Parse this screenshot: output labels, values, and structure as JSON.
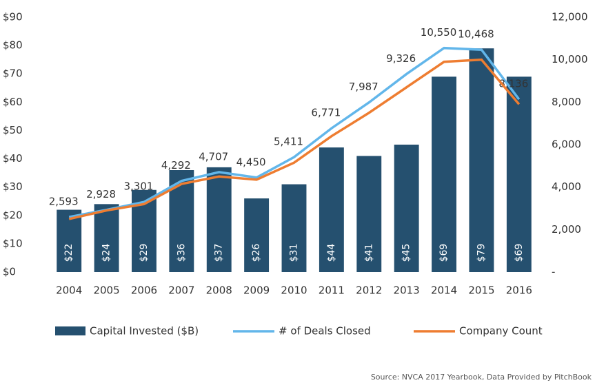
{
  "chart_data": {
    "type": "bar",
    "categories": [
      "2004",
      "2005",
      "2006",
      "2007",
      "2008",
      "2009",
      "2010",
      "2011",
      "2012",
      "2013",
      "2014",
      "2015",
      "2016"
    ],
    "series": [
      {
        "name": "Capital Invested ($B)",
        "type": "bar",
        "color": "#25506f",
        "values": [
          22,
          24,
          29,
          36,
          37,
          26,
          31,
          44,
          41,
          45,
          69,
          79,
          69
        ],
        "value_labels": [
          "$22",
          "$24",
          "$29",
          "$36",
          "$37",
          "$26",
          "$31",
          "$44",
          "$41",
          "$45",
          "$69",
          "$79",
          "$69"
        ]
      },
      {
        "name": "# of Deals Closed",
        "type": "line",
        "axis": "y2",
        "color": "#62b6ea",
        "values": [
          2593,
          2928,
          3301,
          4292,
          4707,
          4450,
          5411,
          6771,
          7987,
          9326,
          10550,
          10468,
          8136
        ],
        "value_labels": [
          "2,593",
          "2,928",
          "3,301",
          "4,292",
          "4,707",
          "4,450",
          "5,411",
          "6,771",
          "7,987",
          "9,326",
          "10,550",
          "10,468",
          "8,136"
        ]
      },
      {
        "name": "Company Count",
        "type": "line",
        "axis": "y2",
        "color": "#ee7d31",
        "values": [
          2500,
          2900,
          3200,
          4150,
          4500,
          4350,
          5150,
          6400,
          7500,
          8700,
          9900,
          10000,
          7900
        ]
      }
    ],
    "ylim": [
      0,
      90
    ],
    "yticks": [
      {
        "value": 0,
        "label": "$0"
      },
      {
        "value": 10,
        "label": "$10"
      },
      {
        "value": 20,
        "label": "$20"
      },
      {
        "value": 30,
        "label": "$30"
      },
      {
        "value": 40,
        "label": "$40"
      },
      {
        "value": 50,
        "label": "$50"
      },
      {
        "value": 60,
        "label": "$60"
      },
      {
        "value": 70,
        "label": "$70"
      },
      {
        "value": 80,
        "label": "$80"
      },
      {
        "value": 90,
        "label": "$90"
      }
    ],
    "y2lim": [
      0,
      12000
    ],
    "y2ticks": [
      {
        "value": 0,
        "label": "-"
      },
      {
        "value": 2000,
        "label": "2,000"
      },
      {
        "value": 4000,
        "label": "4,000"
      },
      {
        "value": 6000,
        "label": "6,000"
      },
      {
        "value": 8000,
        "label": "8,000"
      },
      {
        "value": 10000,
        "label": "10,000"
      },
      {
        "value": 12000,
        "label": "12,000"
      }
    ],
    "source": "Source: NVCA 2017 Yearbook, Data Provided by PitchBook"
  }
}
